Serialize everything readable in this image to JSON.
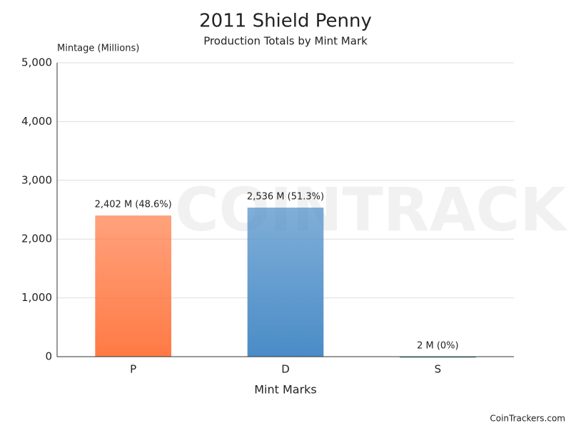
{
  "chart_data": {
    "type": "bar",
    "title": "2011 Shield Penny",
    "subtitle": "Production Totals by Mint Mark",
    "y_label": "Mintage (Millions)",
    "x_label": "Mint Marks",
    "watermark": "COINTRACKERS",
    "credit": "CoinTrackers.com",
    "categories": [
      "P",
      "D",
      "S"
    ],
    "values": [
      2402,
      2536,
      2
    ],
    "value_labels": [
      "2,402 M (48.6%)",
      "2,536 M (51.3%)",
      "2 M (0%)"
    ],
    "colors": [
      "#ff7a45",
      "#4a8cc7",
      "#3d7f8c"
    ],
    "ylim": [
      0,
      5000
    ],
    "yticks": [
      0,
      {
        "value": 1000,
        "label": "1,000"
      },
      {
        "value": 2000,
        "label": "2,000"
      },
      {
        "value": 3000,
        "label": "3,000"
      },
      {
        "value": 4000,
        "label": "4,000"
      },
      {
        "value": 5000,
        "label": "5,000"
      }
    ],
    "grid": true
  }
}
